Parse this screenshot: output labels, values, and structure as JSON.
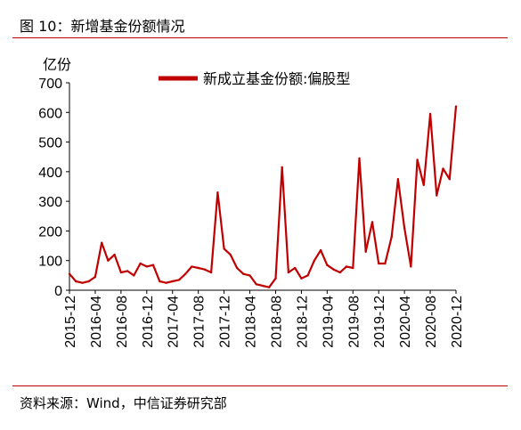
{
  "figure": {
    "title": "图 10：新增基金份额情况",
    "source": "资料来源：Wind，中信证券研究部"
  },
  "colors": {
    "series": "#c00000",
    "rule": "#c00000",
    "axis": "#000000"
  },
  "chart_data": {
    "type": "line",
    "title": "",
    "ylabel": "亿份",
    "xlabel": "",
    "ylim": [
      0,
      700
    ],
    "yticks": [
      0,
      100,
      200,
      300,
      400,
      500,
      600,
      700
    ],
    "xlim": [
      "2015-12",
      "2020-12"
    ],
    "xticks": [
      "2015-12",
      "2016-04",
      "2016-08",
      "2016-12",
      "2017-04",
      "2017-08",
      "2017-12",
      "2018-04",
      "2018-08",
      "2018-12",
      "2019-04",
      "2019-08",
      "2019-12",
      "2020-04",
      "2020-08",
      "2020-12"
    ],
    "grid": false,
    "legend": "top-right",
    "series": [
      {
        "name": "新成立基金份额:偏股型",
        "x": [
          "2015-12",
          "2016-01",
          "2016-02",
          "2016-03",
          "2016-04",
          "2016-05",
          "2016-06",
          "2016-07",
          "2016-08",
          "2016-09",
          "2016-10",
          "2016-11",
          "2016-12",
          "2017-01",
          "2017-02",
          "2017-03",
          "2017-04",
          "2017-05",
          "2017-06",
          "2017-07",
          "2017-08",
          "2017-09",
          "2017-10",
          "2017-11",
          "2017-12",
          "2018-01",
          "2018-02",
          "2018-03",
          "2018-04",
          "2018-05",
          "2018-06",
          "2018-07",
          "2018-08",
          "2018-09",
          "2018-10",
          "2018-11",
          "2018-12",
          "2019-01",
          "2019-02",
          "2019-03",
          "2019-04",
          "2019-05",
          "2019-06",
          "2019-07",
          "2019-08",
          "2019-09",
          "2019-10",
          "2019-11",
          "2019-12",
          "2020-01",
          "2020-02",
          "2020-03",
          "2020-04",
          "2020-05",
          "2020-06",
          "2020-07",
          "2020-08",
          "2020-09",
          "2020-10",
          "2020-11",
          "2020-12"
        ],
        "values": [
          55,
          30,
          25,
          30,
          45,
          160,
          100,
          120,
          60,
          65,
          50,
          90,
          80,
          85,
          30,
          25,
          30,
          35,
          55,
          80,
          75,
          70,
          60,
          330,
          140,
          120,
          75,
          55,
          50,
          20,
          15,
          10,
          40,
          415,
          60,
          75,
          40,
          50,
          100,
          135,
          85,
          70,
          60,
          80,
          75,
          445,
          130,
          230,
          90,
          90,
          180,
          375,
          210,
          80,
          440,
          355,
          595,
          320,
          410,
          375,
          620
        ]
      }
    ]
  }
}
